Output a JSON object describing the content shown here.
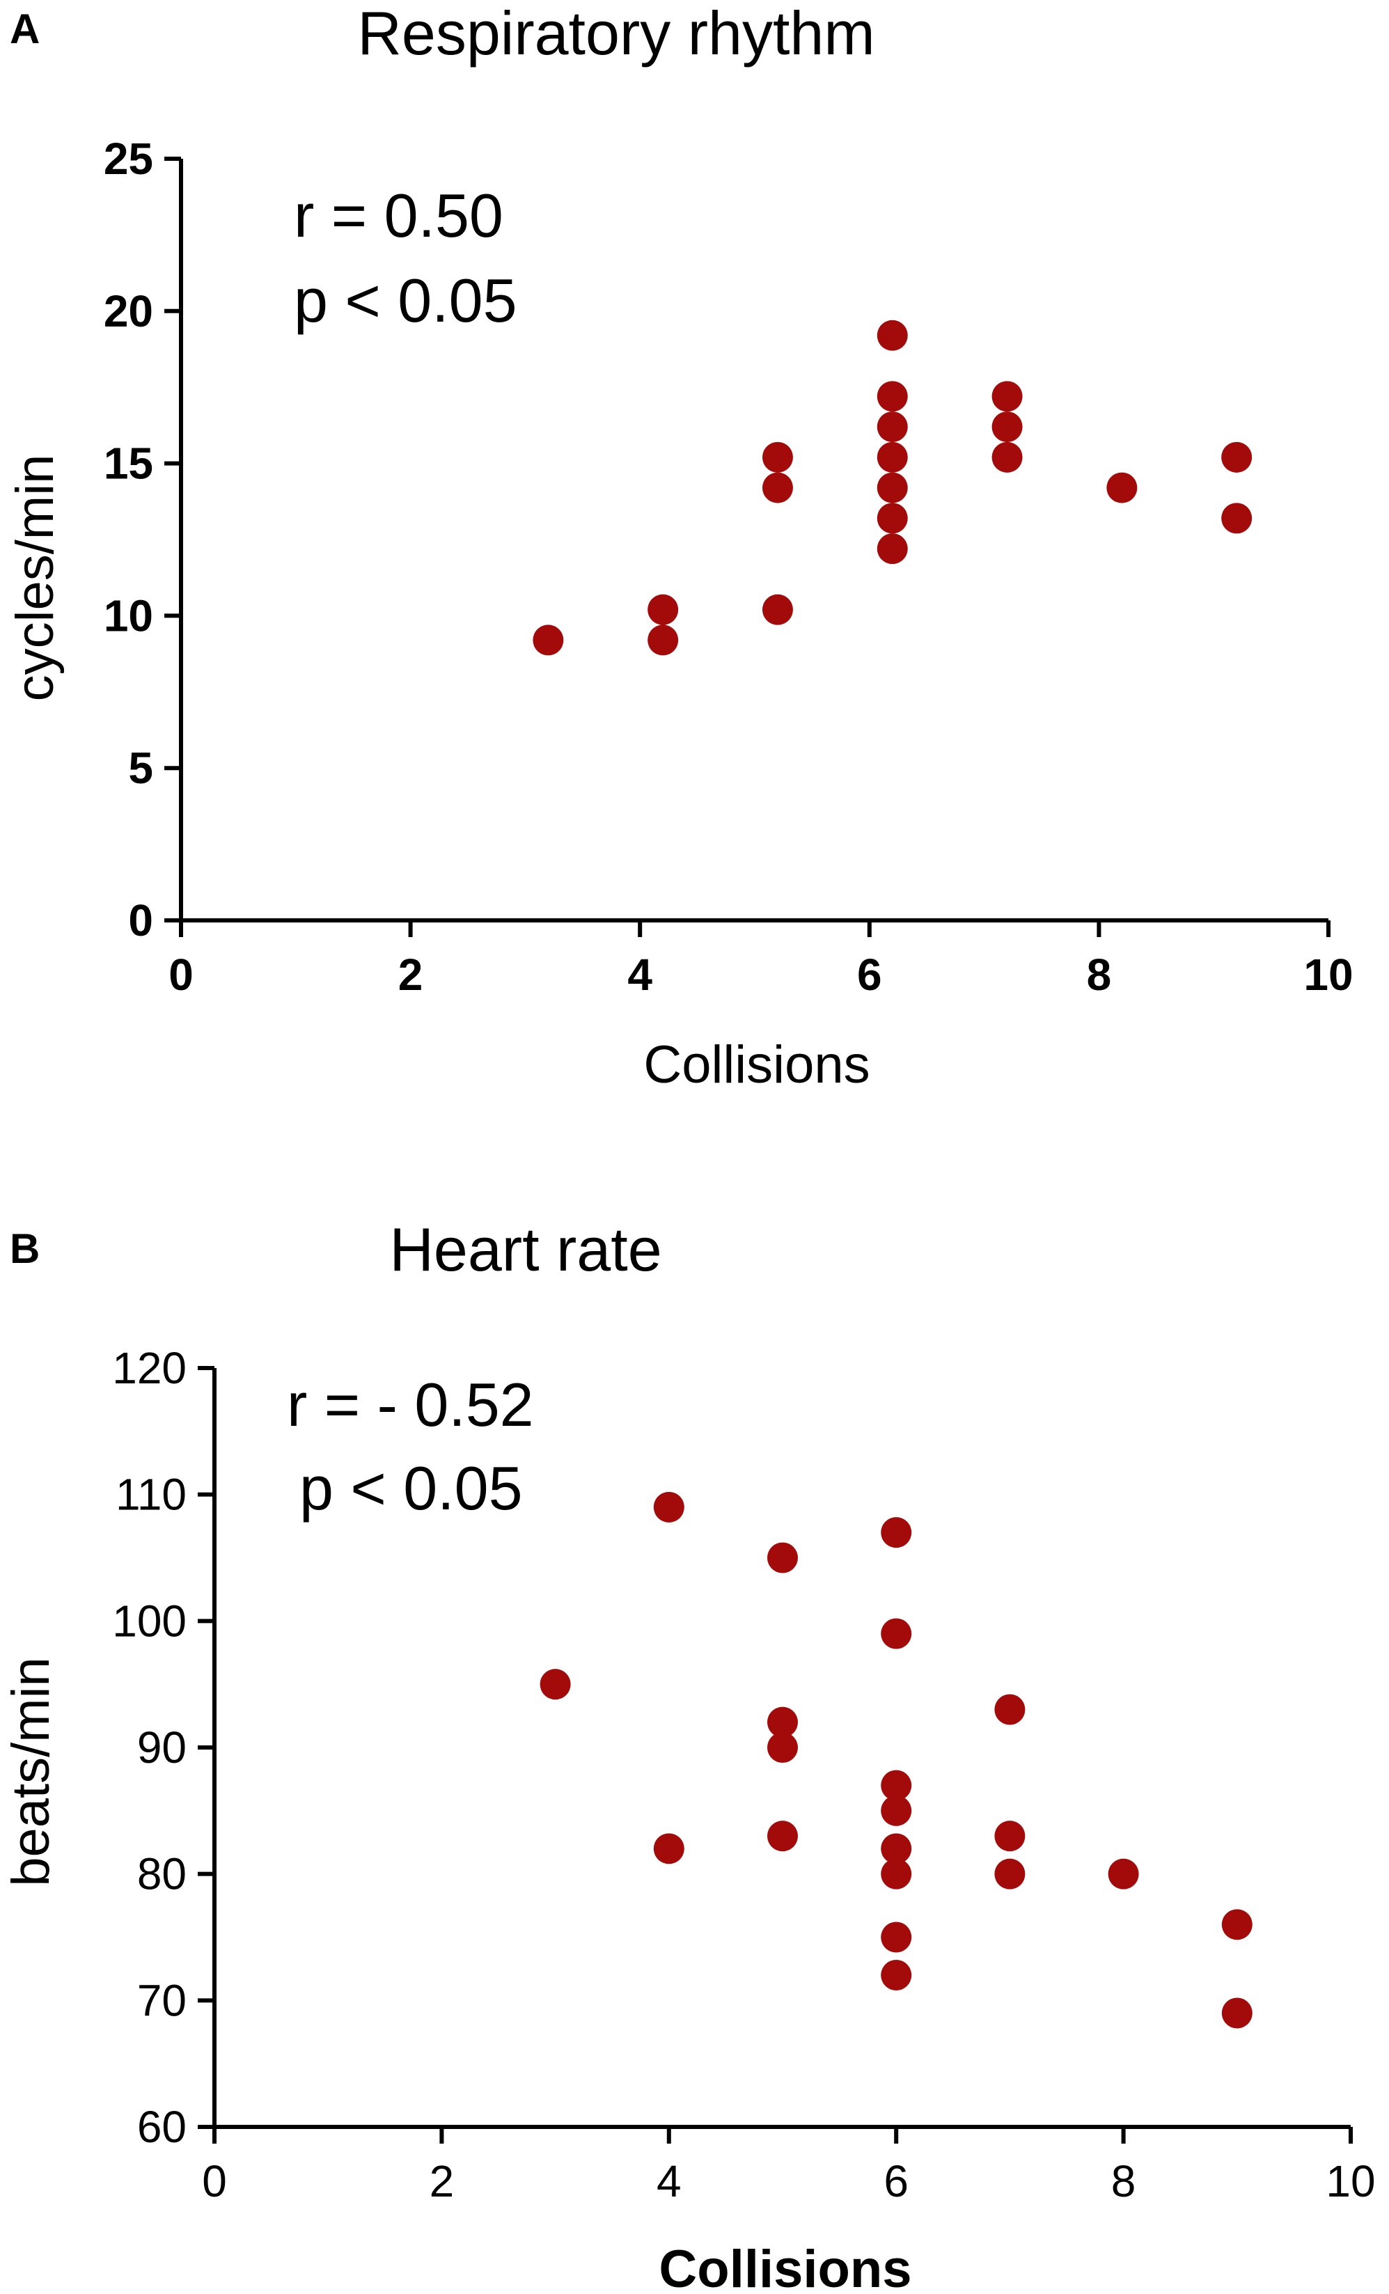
{
  "chart_data": [
    {
      "panel": "A",
      "type": "scatter",
      "title": "Respiratory rhythm",
      "xlabel": "Collisions",
      "ylabel": "cycles/min",
      "xlim": [
        0,
        10
      ],
      "ylim": [
        0,
        25
      ],
      "x_ticks": [
        "0",
        "2",
        "4",
        "6",
        "8",
        "10"
      ],
      "y_ticks": [
        "0",
        "5",
        "10",
        "15",
        "20",
        "25"
      ],
      "annotations": {
        "r": "r = 0.50",
        "p": "p < 0.05"
      },
      "color": "#a30b0b",
      "points": [
        {
          "x": 3.2,
          "y": 9.2
        },
        {
          "x": 4.2,
          "y": 10.2
        },
        {
          "x": 4.2,
          "y": 9.2
        },
        {
          "x": 5.2,
          "y": 15.2
        },
        {
          "x": 5.2,
          "y": 14.2
        },
        {
          "x": 5.2,
          "y": 10.2
        },
        {
          "x": 6.2,
          "y": 19.2
        },
        {
          "x": 6.2,
          "y": 17.2
        },
        {
          "x": 6.2,
          "y": 16.2
        },
        {
          "x": 6.2,
          "y": 15.2
        },
        {
          "x": 6.2,
          "y": 14.2
        },
        {
          "x": 6.2,
          "y": 13.2
        },
        {
          "x": 6.2,
          "y": 12.2
        },
        {
          "x": 7.2,
          "y": 17.2
        },
        {
          "x": 7.2,
          "y": 16.2
        },
        {
          "x": 7.2,
          "y": 15.2
        },
        {
          "x": 8.2,
          "y": 14.2
        },
        {
          "x": 9.2,
          "y": 15.2
        },
        {
          "x": 9.2,
          "y": 13.2
        }
      ]
    },
    {
      "panel": "B",
      "type": "scatter",
      "title": "Heart rate",
      "xlabel": "Collisions",
      "ylabel": "beats/min",
      "xlim": [
        0,
        10
      ],
      "ylim": [
        60,
        120
      ],
      "x_ticks": [
        "0",
        "2",
        "4",
        "6",
        "8",
        "10"
      ],
      "y_ticks": [
        "60",
        "70",
        "80",
        "90",
        "100",
        "110",
        "120"
      ],
      "annotations": {
        "r": "r = - 0.52",
        "p": "p < 0.05"
      },
      "color": "#a30b0b",
      "points": [
        {
          "x": 3,
          "y": 95
        },
        {
          "x": 4,
          "y": 109
        },
        {
          "x": 4,
          "y": 82
        },
        {
          "x": 5,
          "y": 105
        },
        {
          "x": 5,
          "y": 92
        },
        {
          "x": 5,
          "y": 90
        },
        {
          "x": 5,
          "y": 83
        },
        {
          "x": 6,
          "y": 107
        },
        {
          "x": 6,
          "y": 99
        },
        {
          "x": 6,
          "y": 87
        },
        {
          "x": 6,
          "y": 85
        },
        {
          "x": 6,
          "y": 82
        },
        {
          "x": 6,
          "y": 80
        },
        {
          "x": 6,
          "y": 75
        },
        {
          "x": 6,
          "y": 72
        },
        {
          "x": 7,
          "y": 93
        },
        {
          "x": 7,
          "y": 83
        },
        {
          "x": 7,
          "y": 80
        },
        {
          "x": 8,
          "y": 80
        },
        {
          "x": 9,
          "y": 76
        },
        {
          "x": 9,
          "y": 69
        }
      ]
    }
  ]
}
